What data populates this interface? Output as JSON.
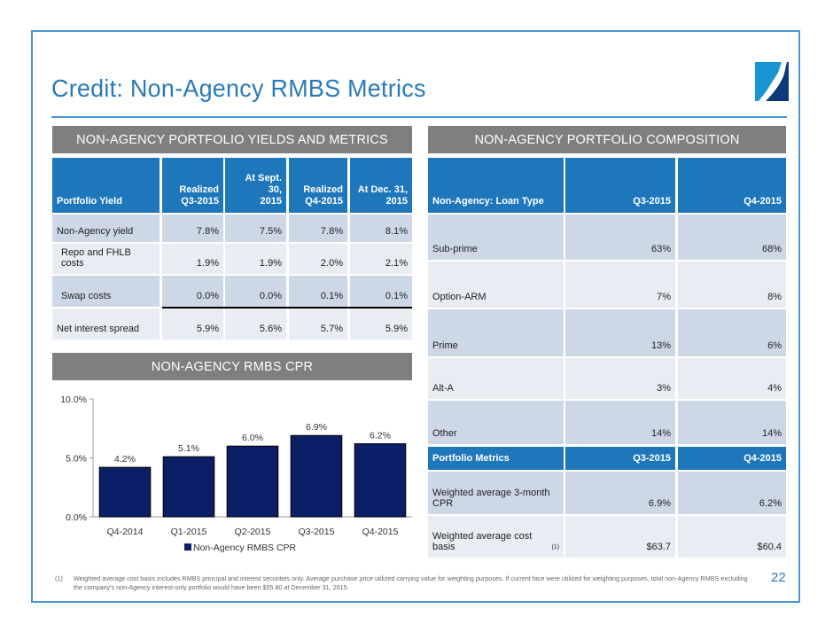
{
  "slide": {
    "title": "Credit: Non-Agency RMBS Metrics",
    "page_number": "22",
    "logo": "company-logo-icon",
    "colors": {
      "title_blue": "#2a7ab8",
      "frame_blue": "#4a96d2",
      "header_blue": "#1f77bb",
      "section_gray": "#7f7f7f",
      "row_dark": "#cdd8e7",
      "row_light": "#e8ecf3",
      "bar_navy": "#0b1f66"
    }
  },
  "yields_section": {
    "title": "NON-AGENCY PORTFOLIO YIELDS AND METRICS",
    "headers": [
      "Portfolio Yield",
      "Realized Q3-2015",
      "At Sept. 30, 2015",
      "Realized Q4-2015",
      "At Dec. 31, 2015"
    ],
    "header_lines": [
      [
        "Portfolio Yield"
      ],
      [
        "Realized",
        "Q3-2015"
      ],
      [
        "At Sept. 30,",
        "2015"
      ],
      [
        "Realized",
        "Q4-2015"
      ],
      [
        "At Dec. 31,",
        "2015"
      ]
    ],
    "rows": [
      {
        "label": "Non-Agency yield",
        "values": [
          "7.8%",
          "7.5%",
          "7.8%",
          "8.1%"
        ]
      },
      {
        "label": "Repo and FHLB costs",
        "values": [
          "1.9%",
          "1.9%",
          "2.0%",
          "2.1%"
        ]
      },
      {
        "label": "Swap costs",
        "values": [
          "0.0%",
          "0.0%",
          "0.1%",
          "0.1%"
        ]
      },
      {
        "label": "Net interest spread",
        "values": [
          "5.9%",
          "5.6%",
          "5.7%",
          "5.9%"
        ]
      }
    ]
  },
  "cpr_section": {
    "title": "NON-AGENCY RMBS CPR"
  },
  "chart_data": {
    "type": "bar",
    "title": "NON-AGENCY RMBS CPR",
    "categories": [
      "Q4-2014",
      "Q1-2015",
      "Q2-2015",
      "Q3-2015",
      "Q4-2015"
    ],
    "series": [
      {
        "name": "Non-Agency RMBS CPR",
        "values": [
          4.2,
          5.1,
          6.0,
          6.9,
          6.2
        ],
        "labels": [
          "4.2%",
          "5.1%",
          "6.0%",
          "6.9%",
          "6.2%"
        ],
        "color": "#0b1f66"
      }
    ],
    "xlabel": "",
    "ylabel": "",
    "ylim": [
      0,
      10
    ],
    "yticks": [
      0,
      5,
      10
    ],
    "ytick_labels": [
      "0.0%",
      "5.0%",
      "10.0%"
    ],
    "grid": false,
    "legend": "bottom-center"
  },
  "composition_section": {
    "title": "NON-AGENCY PORTFOLIO COMPOSITION",
    "headers": [
      "Non-Agency: Loan Type",
      "Q3-2015",
      "Q4-2015"
    ],
    "rows": [
      {
        "label": "Sub-prime",
        "values": [
          "63%",
          "68%"
        ]
      },
      {
        "label": "Option-ARM",
        "values": [
          "7%",
          "8%"
        ]
      },
      {
        "label": "Prime",
        "values": [
          "13%",
          "6%"
        ]
      },
      {
        "label": "Alt-A",
        "values": [
          "3%",
          "4%"
        ]
      },
      {
        "label": "Other",
        "values": [
          "14%",
          "14%"
        ]
      }
    ],
    "metrics_headers": [
      "Portfolio Metrics",
      "Q3-2015",
      "Q4-2015"
    ],
    "metrics_rows": [
      {
        "label": "Weighted average 3-month CPR",
        "footnote": "",
        "values": [
          "6.9%",
          "6.2%"
        ]
      },
      {
        "label": "Weighted average cost basis",
        "footnote": "(1)",
        "values": [
          "$63.7",
          "$60.4"
        ]
      }
    ]
  },
  "footnote": {
    "number": "(1)",
    "text": "Weighted average cost basis includes RMBS principal and interest securities only.  Average purchase price utilized carrying value for weighting purposes.  If current face were utilized for weighting purposes, total non-Agency RMBS excluding the company's non-Agency interest-only portfolio would have been $55.80 at December 31, 2015."
  }
}
